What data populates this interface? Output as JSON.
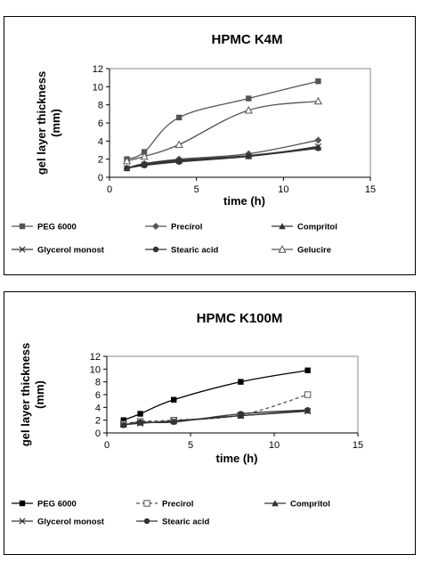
{
  "colors": {
    "grey": "#555555",
    "dark": "#333333",
    "black": "#000000",
    "frame": "#888888"
  },
  "chart_data": [
    {
      "type": "line",
      "title": "HPMC K4M",
      "xlabel": "time (h)",
      "ylabel": "gel layer thickness (mm)",
      "xlim": [
        0,
        15
      ],
      "ylim": [
        0,
        12
      ],
      "xticks": [
        "0",
        "5",
        "10",
        "15"
      ],
      "yticks": [
        "0",
        "2",
        "4",
        "6",
        "8",
        "10",
        "12"
      ],
      "grid": false,
      "legend_position": "bottom",
      "x": [
        1,
        2,
        4,
        8,
        12
      ],
      "series": [
        {
          "name": "PEG 6000",
          "values": [
            2.0,
            2.8,
            6.6,
            8.7,
            10.6
          ],
          "marker": "square-filled",
          "dashed": false,
          "color": "#555555"
        },
        {
          "name": "Precirol",
          "values": [
            1.0,
            1.5,
            2.0,
            2.6,
            4.1
          ],
          "marker": "diamond-filled",
          "dashed": false,
          "color": "#555555"
        },
        {
          "name": "Compritol",
          "values": [
            1.0,
            1.5,
            1.9,
            2.4,
            3.3
          ],
          "marker": "triangle-filled",
          "dashed": false,
          "color": "#333333"
        },
        {
          "name": "Glycerol monost",
          "values": [
            1.0,
            1.4,
            1.8,
            2.3,
            3.4
          ],
          "marker": "x",
          "dashed": false,
          "color": "#333333"
        },
        {
          "name": "Stearic acid",
          "values": [
            1.0,
            1.3,
            1.7,
            2.3,
            3.2
          ],
          "marker": "circle-filled",
          "dashed": false,
          "color": "#333333"
        },
        {
          "name": "Gelucire",
          "values": [
            1.8,
            2.3,
            3.6,
            7.4,
            8.4
          ],
          "marker": "triangle-open",
          "dashed": false,
          "color": "#555555"
        }
      ]
    },
    {
      "type": "line",
      "title": "HPMC K100M",
      "xlabel": "time (h)",
      "ylabel": "gel layer thickness (mm)",
      "xlim": [
        0,
        15
      ],
      "ylim": [
        0,
        12
      ],
      "xticks": [
        "0",
        "5",
        "10",
        "15"
      ],
      "yticks": [
        "0",
        "2",
        "4",
        "6",
        "8",
        "10",
        "12"
      ],
      "grid": false,
      "legend_position": "bottom",
      "x": [
        1,
        2,
        4,
        8,
        12
      ],
      "series": [
        {
          "name": "PEG 6000",
          "values": [
            2.0,
            3.0,
            5.2,
            8.0,
            9.8
          ],
          "marker": "square-filled",
          "dashed": false,
          "color": "#000000"
        },
        {
          "name": "Precirol",
          "values": [
            1.4,
            1.8,
            2.0,
            2.8,
            6.0
          ],
          "marker": "square-open",
          "dashed": true,
          "color": "#555555"
        },
        {
          "name": "Compritol",
          "values": [
            1.3,
            1.6,
            1.8,
            2.7,
            3.5
          ],
          "marker": "triangle-filled",
          "dashed": false,
          "color": "#333333"
        },
        {
          "name": "Glycerol monost",
          "values": [
            1.3,
            1.5,
            1.9,
            2.7,
            3.4
          ],
          "marker": "x",
          "dashed": false,
          "color": "#333333"
        },
        {
          "name": "Stearic acid",
          "values": [
            1.2,
            1.7,
            1.7,
            3.0,
            3.6
          ],
          "marker": "circle-filled",
          "dashed": false,
          "color": "#333333"
        }
      ]
    }
  ]
}
